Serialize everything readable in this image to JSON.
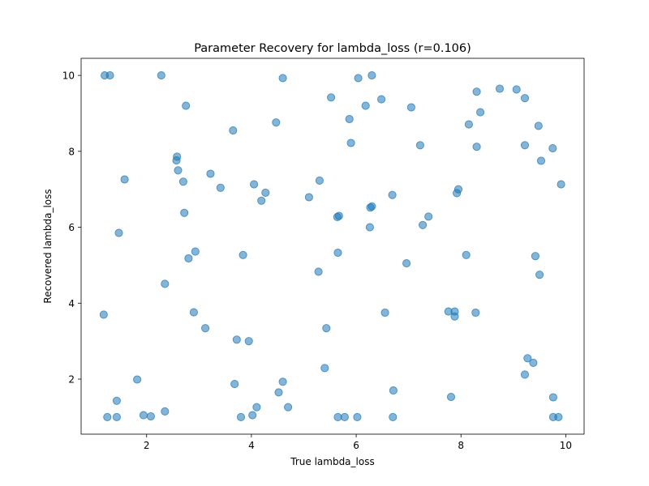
{
  "chart_data": {
    "type": "scatter",
    "title": "Parameter Recovery for lambda_loss (r=0.106)",
    "xlabel": "True lambda_loss",
    "ylabel": "Recovered lambda_loss",
    "xlim": [
      0.75,
      10.35
    ],
    "ylim": [
      0.55,
      10.45
    ],
    "xticks": [
      2,
      4,
      6,
      8,
      10
    ],
    "yticks": [
      2,
      4,
      6,
      8,
      10
    ],
    "grid": false,
    "legend": "none",
    "marker_color": "#1f77b4",
    "marker_alpha": 0.55,
    "series": [
      {
        "x": [
          1.2,
          1.3,
          2.28,
          4.6,
          6.04,
          6.3,
          5.52,
          8.74,
          9.06,
          6.48,
          8.3,
          9.22,
          6.18,
          7.05,
          2.75,
          8.37,
          5.87,
          4.47,
          8.15,
          9.48,
          4.05,
          3.65,
          5.9,
          8.3,
          7.22,
          9.75,
          9.22,
          2.58,
          2.57,
          9.53,
          9.91,
          2.6,
          3.22,
          1.58,
          5.3,
          2.7,
          3.41,
          4.27,
          7.95,
          7.92,
          6.69,
          5.1,
          4.19,
          6.3,
          6.27,
          7.38,
          5.67,
          5.64,
          2.72,
          7.27,
          6.26,
          1.47,
          2.93,
          5.65,
          3.84,
          2.8,
          8.1,
          6.96,
          9.42,
          5.28,
          9.5,
          2.35,
          7.76,
          7.88,
          7.88,
          6.55,
          8.28,
          2.9,
          1.18,
          3.12,
          5.43,
          3.72,
          3.95,
          9.27,
          9.38,
          5.4,
          9.22,
          1.82,
          4.6,
          3.68,
          6.71,
          4.52,
          7.81,
          9.76,
          1.43,
          4.1,
          4.7,
          2.35,
          1.94,
          2.08,
          1.25,
          1.43,
          3.8,
          4.02,
          5.65,
          5.78,
          6.02,
          6.7,
          9.76,
          9.86
        ],
        "y": [
          10.0,
          10.0,
          10.0,
          9.93,
          9.93,
          10.0,
          9.42,
          9.65,
          9.63,
          9.37,
          9.57,
          9.4,
          9.2,
          9.16,
          9.2,
          9.03,
          8.85,
          8.76,
          8.71,
          8.67,
          7.13,
          8.55,
          8.22,
          8.12,
          8.16,
          8.08,
          8.16,
          7.86,
          7.76,
          7.75,
          7.13,
          7.5,
          7.41,
          7.26,
          7.23,
          7.2,
          7.04,
          6.91,
          7.0,
          6.9,
          6.85,
          6.79,
          6.7,
          6.55,
          6.52,
          6.28,
          6.3,
          6.27,
          6.38,
          6.06,
          6.0,
          5.85,
          5.36,
          5.33,
          5.27,
          5.18,
          5.27,
          5.05,
          5.24,
          4.83,
          4.75,
          4.51,
          3.78,
          3.78,
          3.65,
          3.75,
          3.75,
          3.76,
          3.7,
          3.34,
          3.34,
          3.04,
          3.0,
          2.55,
          2.43,
          2.29,
          2.12,
          1.99,
          1.93,
          1.87,
          1.7,
          1.65,
          1.53,
          1.52,
          1.43,
          1.26,
          1.26,
          1.15,
          1.05,
          1.02,
          1.0,
          1.0,
          1.0,
          1.05,
          1.0,
          1.0,
          1.0,
          1.0,
          1.0,
          1.0
        ]
      }
    ]
  }
}
